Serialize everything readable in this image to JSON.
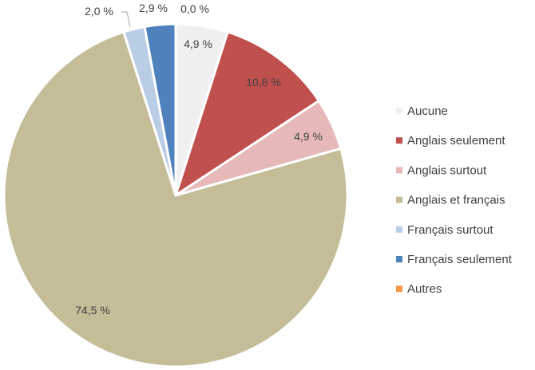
{
  "chart_data": {
    "type": "pie",
    "title": "",
    "legend_position": "right",
    "series": [
      {
        "name": "Aucune",
        "value": 4.9,
        "label": "4,9 %",
        "color": "#f0f0f0"
      },
      {
        "name": "Anglais seulement",
        "value": 10.8,
        "label": "10,8 %",
        "color": "#c0504d"
      },
      {
        "name": "Anglais surtout",
        "value": 4.9,
        "label": "4,9 %",
        "color": "#e6b9b8"
      },
      {
        "name": "Anglais et français",
        "value": 74.5,
        "label": "74,5 %",
        "color": "#c4bd97"
      },
      {
        "name": "Français surtout",
        "value": 2.0,
        "label": "2,0 %",
        "color": "#b9cde5"
      },
      {
        "name": "Français seulement",
        "value": 2.9,
        "label": "2,9 %",
        "color": "#4f81bd"
      },
      {
        "name": "Autres",
        "value": 0.0,
        "label": "0,0 %",
        "color": "#f79646"
      }
    ]
  }
}
